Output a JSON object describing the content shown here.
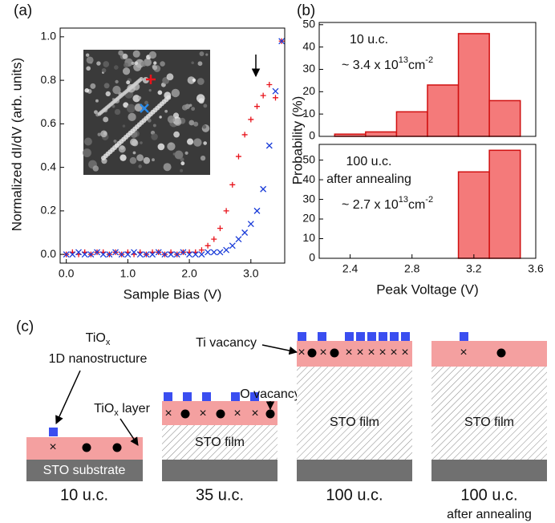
{
  "chart_data": [
    {
      "type": "scatter",
      "panel_label": "(a)",
      "xlabel": "Sample Bias (V)",
      "ylabel": "Normalized dI/dV (arb. units)",
      "x": [
        0.0,
        0.1,
        0.2,
        0.3,
        0.4,
        0.5,
        0.6,
        0.7,
        0.8,
        0.9,
        1.0,
        1.1,
        1.2,
        1.3,
        1.4,
        1.5,
        1.6,
        1.7,
        1.8,
        1.9,
        2.0,
        2.1,
        2.2,
        2.3,
        2.4,
        2.5,
        2.6,
        2.7,
        2.8,
        2.9,
        3.0,
        3.1,
        3.2,
        3.3,
        3.4,
        3.5
      ],
      "series": [
        {
          "color": "#e8141c",
          "marker": "+",
          "values": [
            0.0,
            0.01,
            0.0,
            0.01,
            0.0,
            0.01,
            0.01,
            0.0,
            0.01,
            0.0,
            0.01,
            0.0,
            0.01,
            0.0,
            0.01,
            0.01,
            0.0,
            0.01,
            0.0,
            0.01,
            0.01,
            0.01,
            0.02,
            0.04,
            0.07,
            0.12,
            0.2,
            0.32,
            0.45,
            0.55,
            0.62,
            0.68,
            0.73,
            0.78,
            0.72,
            0.98
          ]
        },
        {
          "color": "#1a3cd8",
          "marker": "x",
          "values": [
            0.0,
            0.0,
            0.01,
            0.0,
            0.0,
            0.01,
            0.0,
            0.0,
            0.01,
            0.0,
            0.0,
            0.01,
            0.0,
            0.0,
            0.0,
            0.01,
            0.0,
            0.0,
            0.0,
            0.01,
            0.0,
            0.0,
            0.0,
            0.01,
            0.01,
            0.01,
            0.02,
            0.04,
            0.07,
            0.1,
            0.14,
            0.2,
            0.3,
            0.5,
            0.75,
            0.98
          ]
        }
      ],
      "xlim": [
        -0.1,
        3.55
      ],
      "ylim": [
        -0.04,
        1.04
      ],
      "xticks": [
        {
          "value": 0,
          "label": "0.0"
        },
        {
          "value": 1,
          "label": "1.0"
        },
        {
          "value": 2,
          "label": "2.0"
        },
        {
          "value": 3,
          "label": "3.0"
        }
      ],
      "yticks": [
        {
          "value": 0,
          "label": "0.0"
        },
        0.2,
        0.4,
        0.6,
        0.8,
        {
          "value": 1,
          "label": "1.0"
        }
      ]
    },
    {
      "type": "histogram",
      "panel_label": "(b)",
      "ylabel": "Probability (%)",
      "color": "#f47a7a",
      "bins": [
        2.3,
        2.5,
        2.7,
        2.9,
        3.1,
        3.3,
        3.5
      ],
      "counts": [
        1,
        2,
        11,
        23,
        46,
        16
      ],
      "xlim": [
        2.2,
        3.6
      ],
      "ylim": [
        0,
        51
      ],
      "yticks": [
        0,
        10,
        20,
        30,
        40,
        50
      ],
      "annotations": [
        "10 u.c."
      ],
      "density": {
        "text": "~ 3.4 x 10",
        "exp": "13",
        "unit": "cm",
        "unit_exp": "-2"
      }
    },
    {
      "type": "histogram",
      "xlabel": "Peak Voltage (V)",
      "color": "#f47a7a",
      "bins": [
        2.3,
        2.5,
        2.7,
        2.9,
        3.1,
        3.3,
        3.5
      ],
      "counts": [
        0,
        0,
        0,
        0,
        44,
        55
      ],
      "xlim": [
        2.2,
        3.6
      ],
      "ylim": [
        0,
        58
      ],
      "yticks": [
        0,
        10,
        20,
        30,
        40,
        50
      ],
      "xticks": [
        2.4,
        2.8,
        3.2,
        3.6
      ],
      "annotations": [
        "100 u.c.",
        "after annealing"
      ],
      "density": {
        "text": "~ 2.7 x 10",
        "exp": "13",
        "unit": "cm",
        "unit_exp": "-2"
      }
    }
  ],
  "diagram": {
    "panel_label": "(c)",
    "nanostructure": {
      "base": "TiO",
      "sub": "x",
      "line2": "1D nanostructure"
    },
    "layer": {
      "base": "TiO",
      "sub": "x",
      "rest": " layer"
    },
    "ti_vacancy": "Ti vacancy",
    "o_vacancy": "O vacancy",
    "substrate": "STO substrate",
    "film": [
      "STO film",
      "STO film",
      "STO film"
    ],
    "thickness": [
      [
        "10 u.c."
      ],
      [
        "35 u.c."
      ],
      [
        "100 u.c."
      ],
      [
        "100 u.c.",
        "after annealing"
      ]
    ]
  }
}
